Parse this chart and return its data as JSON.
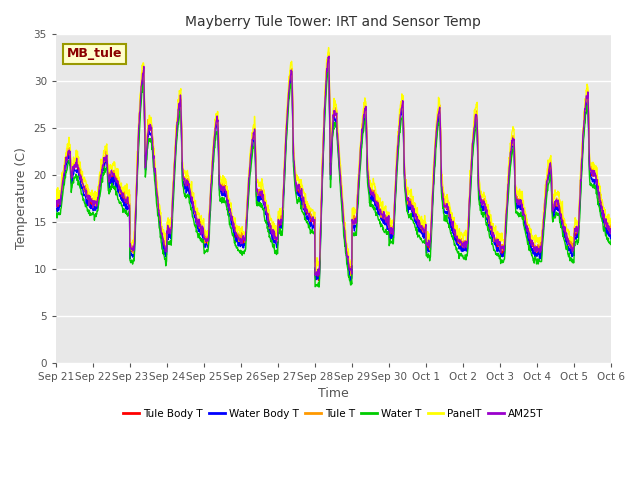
{
  "title": "Mayberry Tule Tower: IRT and Sensor Temp",
  "xlabel": "Time",
  "ylabel": "Temperature (C)",
  "ylim": [
    0,
    35
  ],
  "yticks": [
    0,
    5,
    10,
    15,
    20,
    25,
    30,
    35
  ],
  "x_labels": [
    "Sep 21",
    "Sep 22",
    "Sep 23",
    "Sep 24",
    "Sep 25",
    "Sep 26",
    "Sep 27",
    "Sep 28",
    "Sep 29",
    "Sep 30",
    "Oct 1",
    "Oct 2",
    "Oct 3",
    "Oct 4",
    "Oct 5",
    "Oct 6"
  ],
  "legend_entries": [
    "Tule Body T",
    "Water Body T",
    "Tule T",
    "Water T",
    "PanelT",
    "AM25T"
  ],
  "legend_colors": [
    "#ff0000",
    "#0000ff",
    "#ff9900",
    "#00cc00",
    "#ffff00",
    "#9900cc"
  ],
  "annotation_text": "MB_tule",
  "fig_bg": "#ffffff",
  "plot_bg": "#e8e8e8",
  "grid_color": "#ffffff",
  "num_days": 15,
  "pts_per_day": 96,
  "night_temps": [
    17,
    17,
    12,
    14,
    13,
    13,
    15,
    9.5,
    15,
    14,
    12.5,
    12.5,
    12,
    12,
    14
  ],
  "day_peak1": [
    22.5,
    22,
    31,
    28,
    26,
    24.5,
    31,
    32.5,
    27,
    27.5,
    27,
    26.5,
    24,
    21,
    28.5
  ],
  "day_peak2": [
    21,
    20,
    25,
    19,
    18.5,
    18,
    18.5,
    26.5,
    18,
    17,
    16.5,
    17,
    17,
    17,
    20
  ]
}
